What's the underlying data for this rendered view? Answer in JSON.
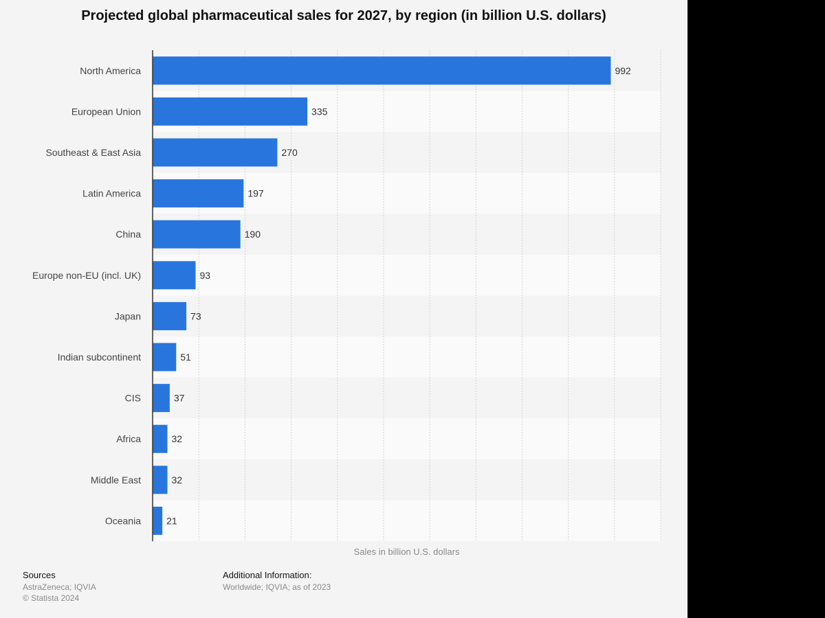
{
  "title": "Projected global pharmaceutical sales for 2027, by region (in billion U.S. dollars)",
  "chart_data": {
    "type": "bar",
    "orientation": "horizontal",
    "categories": [
      "North America",
      "European Union",
      "Southeast & East Asia",
      "Latin America",
      "China",
      "Europe non-EU (incl. UK)",
      "Japan",
      "Indian subcontinent",
      "CIS",
      "Africa",
      "Middle East",
      "Oceania"
    ],
    "values": [
      992,
      335,
      270,
      197,
      190,
      93,
      73,
      51,
      37,
      32,
      32,
      21
    ],
    "value_labels": [
      "992",
      "335",
      "270",
      "197",
      "190",
      "93",
      "73",
      "51",
      "37",
      "32",
      "32",
      "21"
    ],
    "xlabel": "Sales in billion U.S. dollars",
    "xlim": [
      0,
      1100
    ],
    "grid": true,
    "bar_color": "#2876dd"
  },
  "footer": {
    "sources_heading": "Sources",
    "sources_lines": [
      "AstraZeneca; IQVIA",
      "© Statista 2024"
    ],
    "additional_heading": "Additional Information:",
    "additional_text": "Worldwide; IQVIA; as of 2023"
  }
}
